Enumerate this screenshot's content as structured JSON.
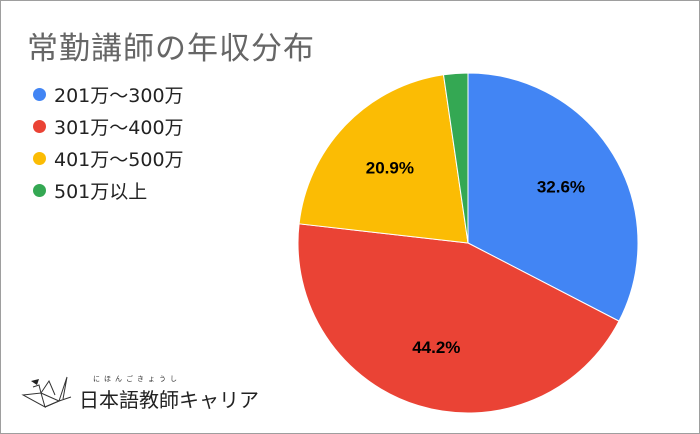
{
  "chart_data": {
    "type": "pie",
    "title": "常勤講師の年収分布",
    "legend_position": "top-left",
    "slices": [
      {
        "label": "201万〜300万",
        "value": 32.6,
        "display": "32.6%",
        "color": "#4285f4"
      },
      {
        "label": "301万〜400万",
        "value": 44.2,
        "display": "44.2%",
        "color": "#ea4335"
      },
      {
        "label": "401万〜500万",
        "value": 20.9,
        "display": "20.9%",
        "color": "#fbbc04"
      },
      {
        "label": "501万以上",
        "value": 2.3,
        "display": "",
        "color": "#34a853"
      }
    ]
  },
  "logo": {
    "text": "日本語教師キャリア",
    "ruby": "にほんごきょうし"
  }
}
